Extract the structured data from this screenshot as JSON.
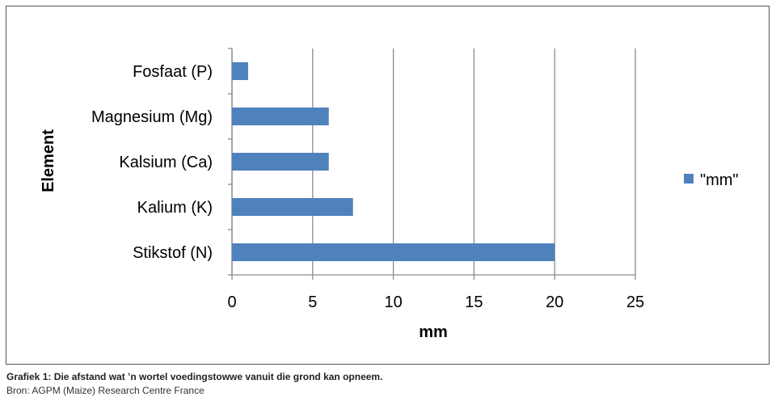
{
  "chart_data": {
    "type": "bar",
    "orientation": "horizontal",
    "categories": [
      "Stikstof (N)",
      "Kalium (K)",
      "Kalsium (Ca)",
      "Magnesium (Mg)",
      "Fosfaat (P)"
    ],
    "series": [
      {
        "name": "\"mm\"",
        "values": [
          20,
          7.5,
          6,
          6,
          1
        ],
        "color": "#4f81bd"
      }
    ],
    "xlabel": "mm",
    "ylabel": "Element",
    "xlim": [
      0,
      25
    ],
    "xticks": [
      "0",
      "5",
      "10",
      "15",
      "20",
      "25"
    ],
    "grid": true,
    "legend_position": "right"
  },
  "caption": {
    "title": "Grafiek 1: Die afstand wat ’n wortel voedingstowwe vanuit die grond kan opneem.",
    "source": "Bron: AGPM (Maize) Research Centre France"
  }
}
